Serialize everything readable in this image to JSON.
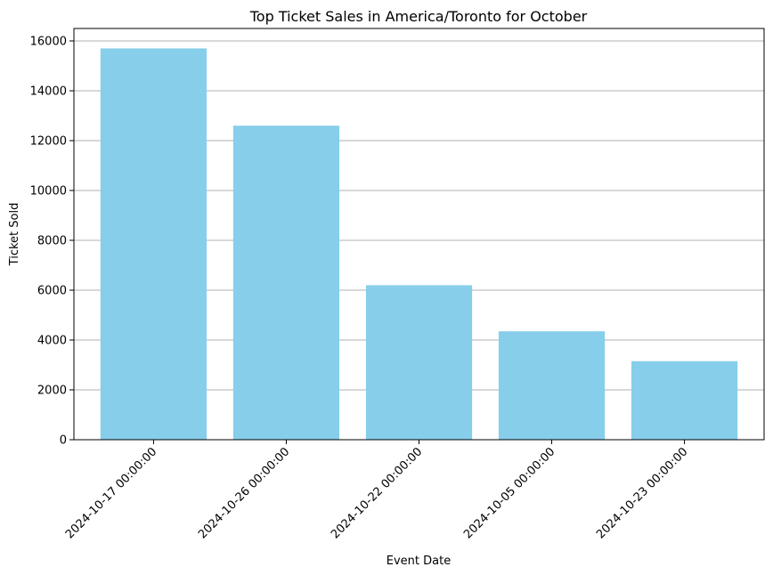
{
  "chart_data": {
    "type": "bar",
    "title": "Top Ticket Sales in America/Toronto for October",
    "xlabel": "Event Date",
    "ylabel": "Ticket Sold",
    "categories": [
      "2024-10-17 00:00:00",
      "2024-10-26 00:00:00",
      "2024-10-22 00:00:00",
      "2024-10-05 00:00:00",
      "2024-10-23 00:00:00"
    ],
    "values": [
      15700,
      12600,
      6200,
      4350,
      3150
    ],
    "ylim": [
      0,
      16500
    ],
    "yticks": [
      0,
      2000,
      4000,
      6000,
      8000,
      10000,
      12000,
      14000,
      16000
    ],
    "bar_color": "#87ceeb",
    "grid_color": "#b0b0b0",
    "grid": "y-major",
    "legend": "none"
  }
}
